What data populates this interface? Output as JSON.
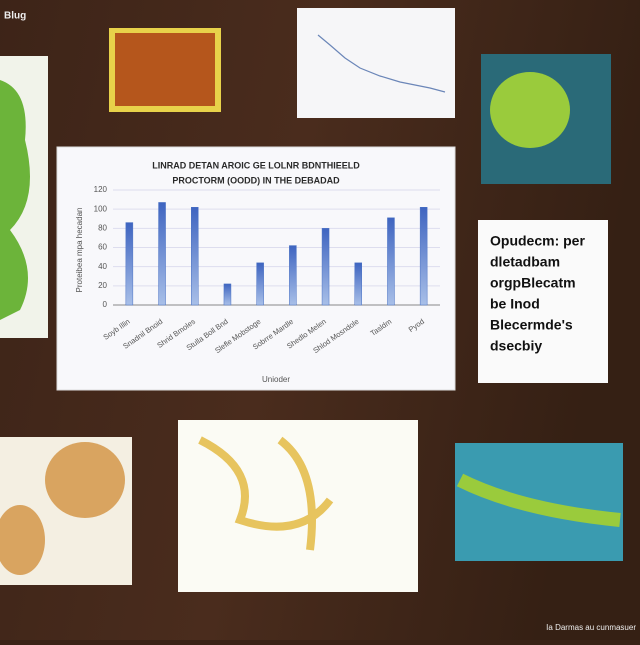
{
  "board": {
    "corner_top": "Blug",
    "corner_bottom": "Ia Darmas au cunmasuer",
    "note": [
      "Opudecm: per",
      "dletadbam",
      "orgpBlecatm",
      "be Inod",
      "Blecermde's",
      "dsecbiy"
    ]
  },
  "chart_data": {
    "type": "bar",
    "title": [
      "LINRAD DETAN AROIC GE LOLNR BDNTHIEELD",
      "PROCTORM (OODD) IN THE DEBADAD"
    ],
    "y_label": "Proteibea mpa hecadan",
    "x_label": "Unioder",
    "categories": [
      "Soyb Illin",
      "Snadnil Bnoid",
      "Shrid Bmoles",
      "Stulla Boll Bnd",
      "Slefle Mobstoge",
      "Sobrre Mardle",
      "Shedlo Melen",
      "Shlod Mosndole",
      "Tasldm",
      "Pyod"
    ],
    "values": [
      86,
      107,
      102,
      22,
      44,
      62,
      80,
      44,
      91,
      102
    ],
    "color": "#4a72c4",
    "ylim": [
      0,
      120
    ],
    "yticks": [
      0,
      20,
      40,
      60,
      80,
      100,
      120
    ],
    "grid": true
  }
}
